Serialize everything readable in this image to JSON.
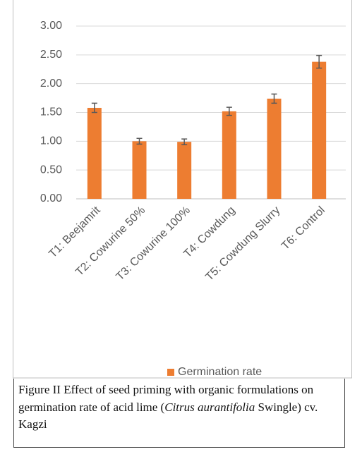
{
  "chart_data": {
    "type": "bar",
    "categories": [
      "T1: Beejamrit",
      "T2: Cowurine 50%",
      "T3: Cowurine 100%",
      "T4: Cowdung",
      "T5: Cowdung Slurry",
      "T6: Control"
    ],
    "series": [
      {
        "name": "Germination rate",
        "color": "#ed7d31",
        "values": [
          1.58,
          1.0,
          0.99,
          1.52,
          1.74,
          2.38
        ],
        "errors": [
          0.08,
          0.05,
          0.05,
          0.07,
          0.08,
          0.11
        ]
      }
    ],
    "ylim": [
      0,
      3
    ],
    "yticks": [
      {
        "value": 0,
        "label": "0.00"
      },
      {
        "value": 0.5,
        "label": "0.50"
      },
      {
        "value": 1,
        "label": "1.00"
      },
      {
        "value": 1.5,
        "label": "1.50"
      },
      {
        "value": 2,
        "label": "2.00"
      },
      {
        "value": 2.5,
        "label": "2.50"
      },
      {
        "value": 3,
        "label": "3.00"
      }
    ],
    "grid": true,
    "legend": "bottom"
  },
  "caption": {
    "before": "Figure II Effect of seed priming with organic formulations on germination rate of acid lime (",
    "italic": "Citrus aurantifolia",
    "after": " Swingle) cv. Kagzi"
  }
}
